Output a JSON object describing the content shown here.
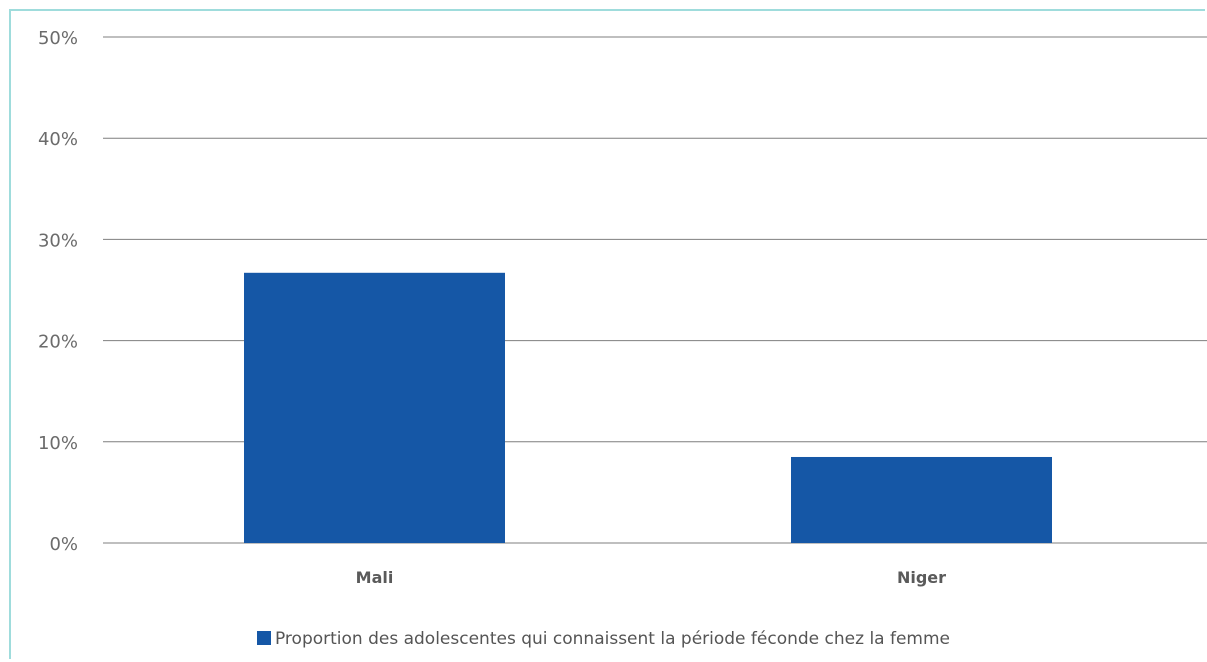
{
  "chart_data": {
    "type": "bar",
    "categories": [
      "Mali",
      "Niger"
    ],
    "series": [
      {
        "name": "Proportion des adolescentes qui connaissent la période féconde chez la femme",
        "values": [
          26.7,
          8.5
        ],
        "color": "#1557a6"
      }
    ],
    "ylim": [
      0,
      50
    ],
    "yticks": [
      0,
      10,
      20,
      30,
      40,
      50
    ],
    "ytick_labels": [
      "0%",
      "10%",
      "20%",
      "30%",
      "40%",
      "50%"
    ],
    "grid": true,
    "legend_position": "bottom"
  }
}
